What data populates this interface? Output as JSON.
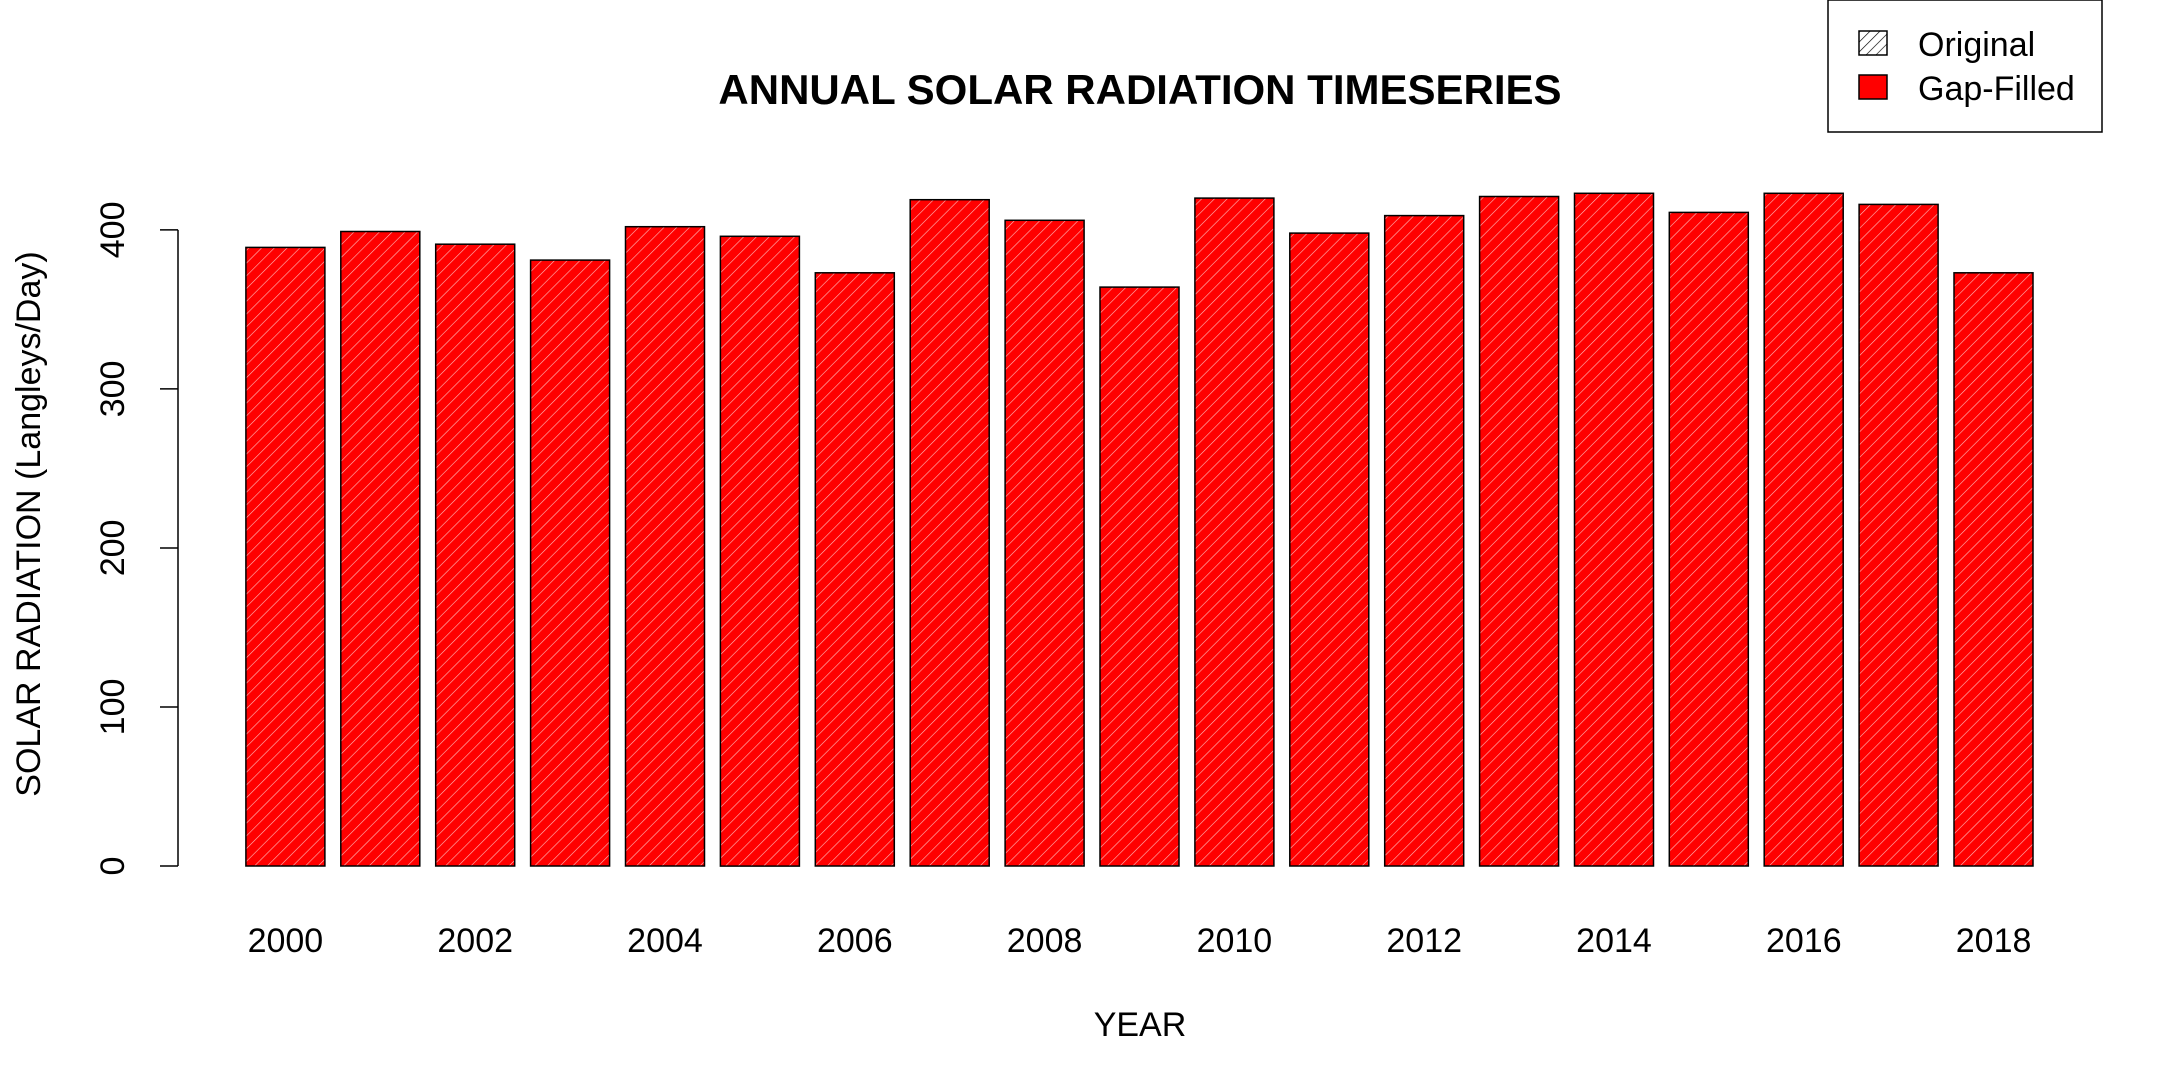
{
  "colors": {
    "bar_fill": "#ff0000",
    "hatch": "#ffffff",
    "outline": "#000000",
    "background": "#ffffff"
  },
  "chart_data": {
    "type": "bar",
    "title": "ANNUAL SOLAR RADIATION TIMESERIES",
    "xlabel": "YEAR",
    "ylabel": "SOLAR RADIATION (Langleys/Day)",
    "categories": [
      "2000",
      "2001",
      "2002",
      "2003",
      "2004",
      "2005",
      "2006",
      "2007",
      "2008",
      "2009",
      "2010",
      "2011",
      "2012",
      "2013",
      "2014",
      "2015",
      "2016",
      "2017",
      "2018"
    ],
    "x_tick_labels": [
      "2000",
      "2002",
      "2004",
      "2006",
      "2008",
      "2010",
      "2012",
      "2014",
      "2016",
      "2018"
    ],
    "y_ticks": [
      0,
      100,
      200,
      300,
      400
    ],
    "ylim": [
      0,
      432
    ],
    "grid": false,
    "series": [
      {
        "name": "Gap-Filled",
        "values": [
          389,
          399,
          391,
          381,
          402,
          396,
          373,
          419,
          406,
          364,
          420,
          398,
          409,
          421,
          423,
          411,
          423,
          416,
          373
        ]
      }
    ],
    "legend": {
      "position": "top-right",
      "entries": [
        {
          "label": "Original",
          "style": "hatched"
        },
        {
          "label": "Gap-Filled",
          "style": "solid"
        }
      ]
    }
  }
}
